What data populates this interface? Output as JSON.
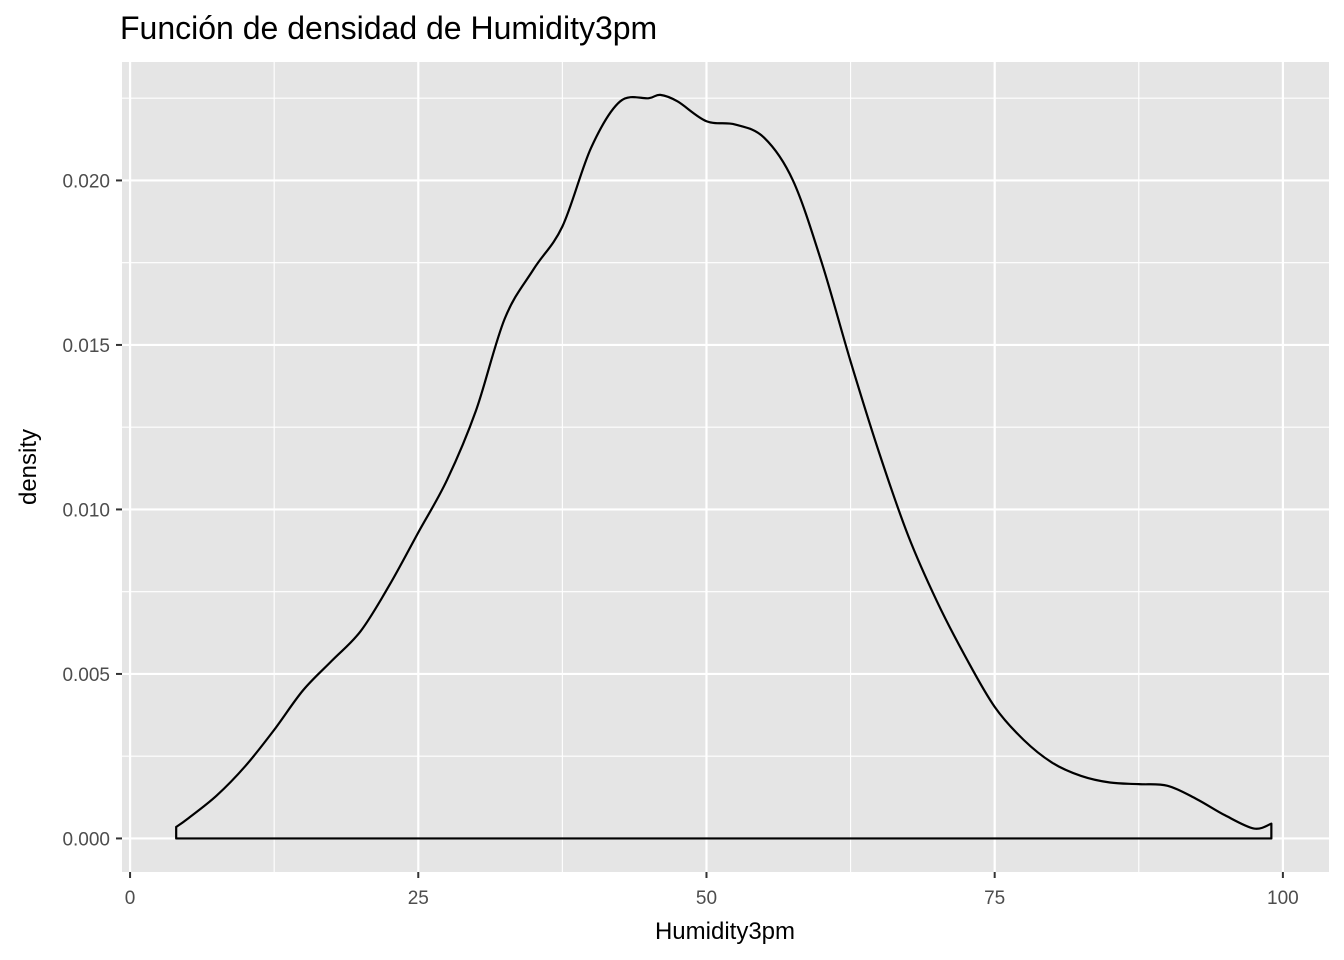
{
  "chart_data": {
    "type": "area",
    "title": "Función de densidad de Humidity3pm",
    "xlabel": "Humidity3pm",
    "ylabel": "density",
    "xlim": [
      -0.7,
      104.0
    ],
    "ylim": [
      -0.00102,
      0.0236
    ],
    "x_ticks": [
      0,
      25,
      50,
      75,
      100
    ],
    "x_tick_labels": [
      "0",
      "25",
      "50",
      "75",
      "100"
    ],
    "y_ticks": [
      0,
      0.005,
      0.01,
      0.015,
      0.02
    ],
    "y_tick_labels": [
      "0.000",
      "0.005",
      "0.010",
      "0.015",
      "0.020"
    ],
    "grid": true,
    "background": "#e5e5e5",
    "line_color": "#000000",
    "series": [
      {
        "x": [
          4,
          5,
          7.5,
          10,
          12.5,
          15,
          17.5,
          20,
          22.5,
          25,
          27.5,
          30,
          32.5,
          35,
          37.5,
          40,
          42.5,
          45,
          46,
          47.5,
          50,
          52.5,
          55,
          57.5,
          60,
          62.5,
          65,
          67.5,
          70,
          72.5,
          75,
          77.5,
          80,
          82.5,
          85,
          87.5,
          90,
          92.5,
          95,
          97.5,
          99
        ],
        "y": [
          0.00035,
          0.0006,
          0.0013,
          0.0022,
          0.0033,
          0.0045,
          0.0054,
          0.0063,
          0.0077,
          0.0093,
          0.0109,
          0.013,
          0.0158,
          0.0173,
          0.0186,
          0.021,
          0.0224,
          0.0225,
          0.0226,
          0.0224,
          0.0218,
          0.0217,
          0.0213,
          0.02,
          0.0175,
          0.0145,
          0.0117,
          0.0092,
          0.0072,
          0.0055,
          0.004,
          0.003,
          0.0023,
          0.0019,
          0.0017,
          0.00165,
          0.0016,
          0.0012,
          0.0007,
          0.0003,
          0.00045
        ]
      }
    ]
  }
}
